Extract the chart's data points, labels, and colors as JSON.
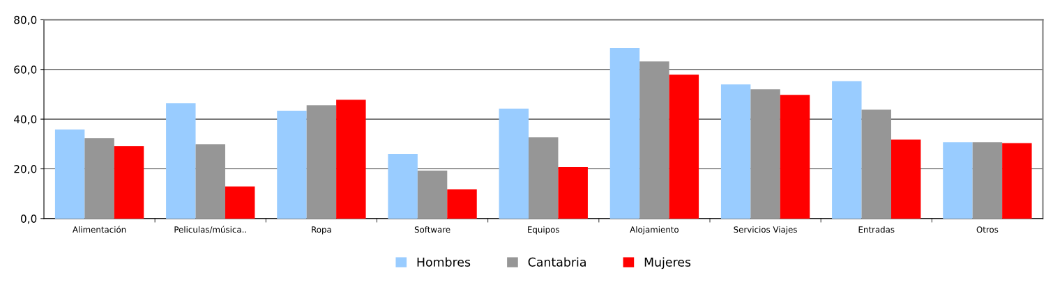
{
  "chart_data": {
    "type": "bar",
    "categories": [
      "Alimentación",
      "Peliculas/música..",
      "Ropa",
      "Software",
      "Equipos",
      "Alojamiento",
      "Servicios Viajes",
      "Entradas",
      "Otros"
    ],
    "series": [
      {
        "name": "Hombres",
        "color": "#99ccff",
        "values": [
          35.8,
          46.4,
          43.4,
          26.0,
          44.2,
          68.6,
          54.0,
          55.3,
          30.7
        ]
      },
      {
        "name": "Cantabria",
        "color": "#969696",
        "values": [
          32.4,
          29.9,
          45.6,
          19.3,
          32.7,
          63.2,
          52.0,
          43.8,
          30.7
        ]
      },
      {
        "name": "Mujeres",
        "color": "#ff0000",
        "values": [
          29.1,
          12.9,
          47.8,
          11.7,
          20.7,
          57.9,
          49.8,
          31.8,
          30.4
        ]
      }
    ],
    "ylim": [
      0,
      80
    ],
    "yticks": [
      {
        "value": 0,
        "label": "0,0"
      },
      {
        "value": 20,
        "label": "20,0"
      },
      {
        "value": 40,
        "label": "40,0"
      },
      {
        "value": 60,
        "label": "60,0"
      },
      {
        "value": 80,
        "label": "80,0"
      }
    ],
    "grid": "y",
    "legend": "bottom"
  }
}
